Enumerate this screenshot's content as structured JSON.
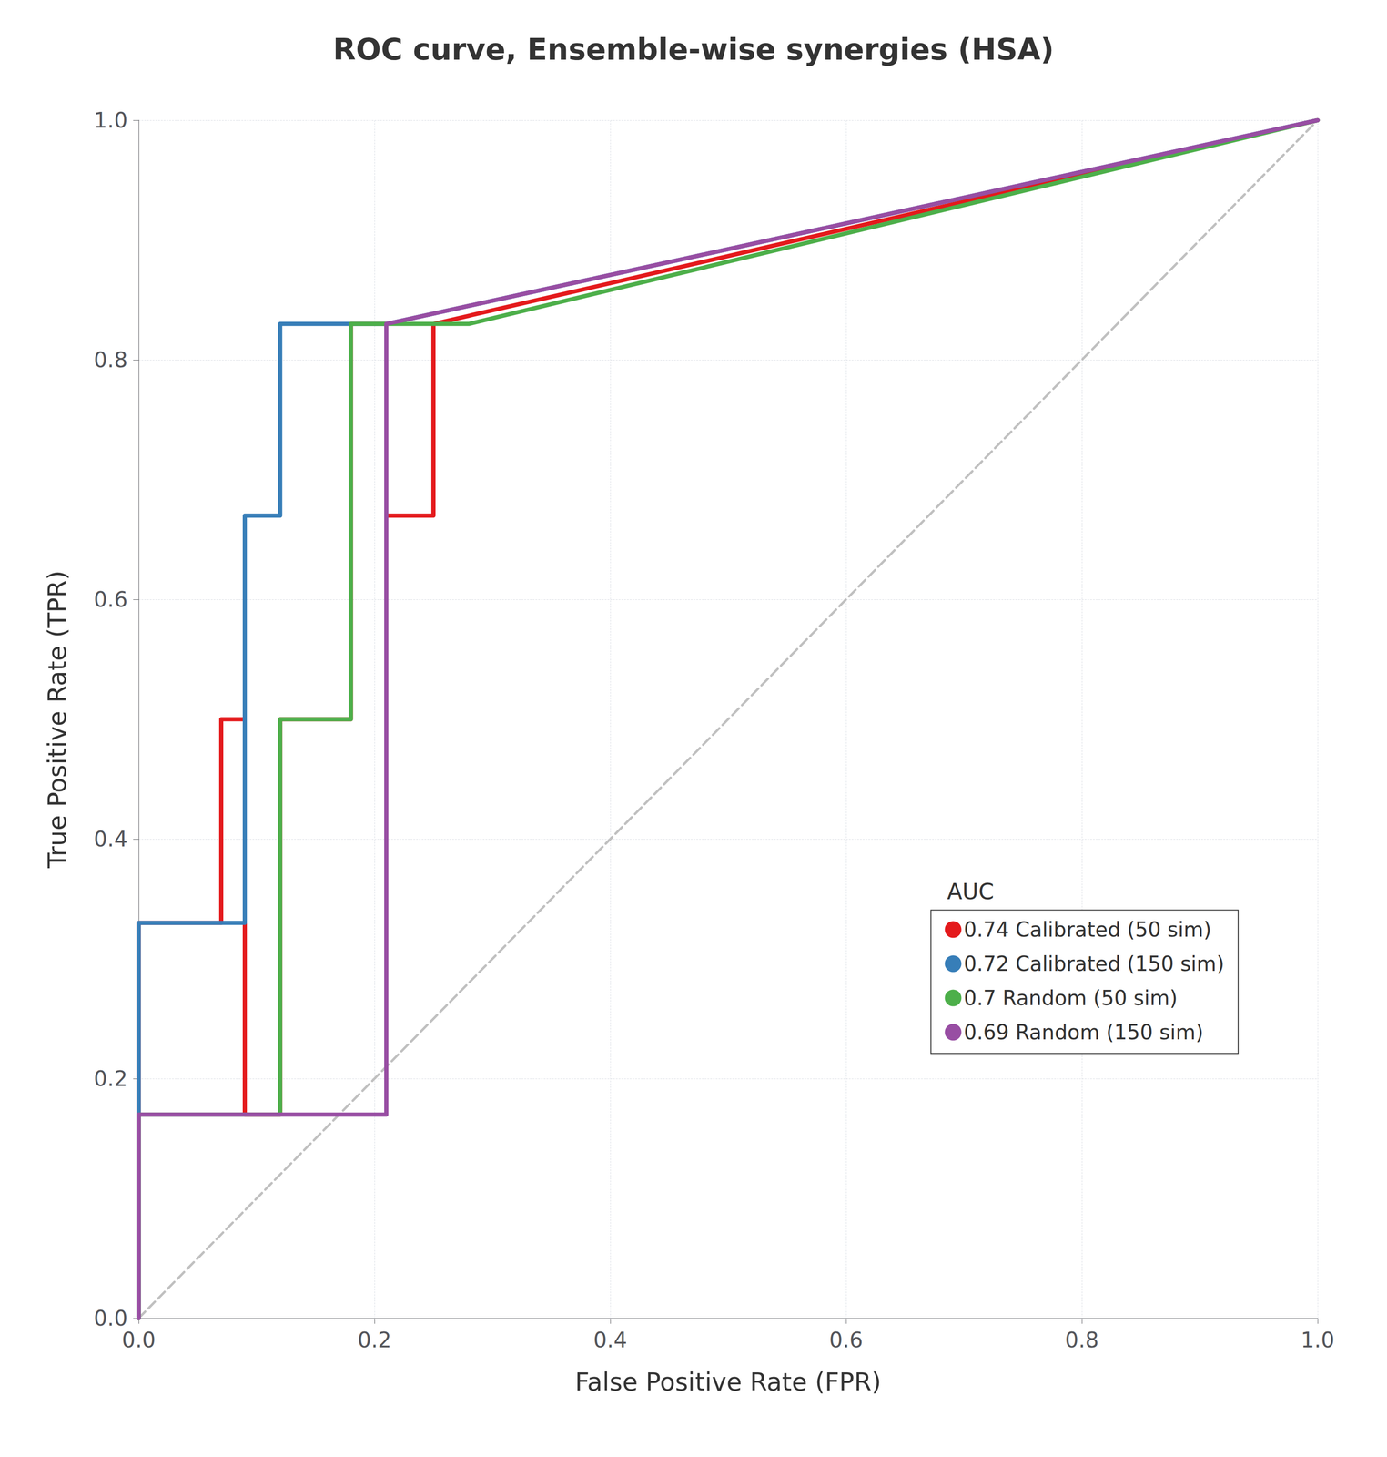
{
  "chart_data": {
    "type": "line",
    "title": "ROC curve, Ensemble-wise synergies (HSA)",
    "xlabel": "False Positive Rate (FPR)",
    "ylabel": "True Positive Rate (TPR)",
    "legend_title": "AUC",
    "legend": "lower right",
    "grid": true,
    "xlim": [
      0,
      1
    ],
    "ylim": [
      0,
      1
    ],
    "xticks": [
      {
        "value": 0,
        "label": "0.0"
      },
      0.2,
      0.4,
      0.6,
      0.8,
      {
        "value": 1,
        "label": "1.0"
      }
    ],
    "yticks": [
      {
        "value": 0,
        "label": "0.0"
      },
      0.2,
      0.4,
      0.6,
      0.8,
      {
        "value": 1,
        "label": "1.0"
      }
    ],
    "series": [
      {
        "color": "#c0c0c0",
        "line_style": "dashed",
        "x": [
          0,
          1
        ],
        "values": [
          0,
          1
        ]
      },
      {
        "name": "0.74 Calibrated (50 sim)",
        "color": "#e41a1c",
        "line_style": "solid",
        "x": [
          0.0,
          0.0,
          0.07,
          0.07,
          0.09,
          0.09,
          0.12,
          0.12,
          0.18,
          0.18,
          0.21,
          0.21,
          0.25,
          0.25,
          1.0
        ],
        "values": [
          0.0,
          0.33,
          0.33,
          0.5,
          0.5,
          0.17,
          0.17,
          0.5,
          0.5,
          0.83,
          0.83,
          0.67,
          0.67,
          0.83,
          1.0
        ]
      },
      {
        "name": "0.72 Calibrated (150 sim)",
        "color": "#377eb8",
        "line_style": "solid",
        "x": [
          0.0,
          0.0,
          0.09,
          0.09,
          0.12,
          0.12,
          0.21,
          0.21,
          1.0
        ],
        "values": [
          0.0,
          0.33,
          0.33,
          0.67,
          0.67,
          0.83,
          0.83,
          0.83,
          1.0
        ]
      },
      {
        "name": "0.7 Random (50 sim)",
        "color": "#4daf4a",
        "line_style": "solid",
        "x": [
          0.0,
          0.0,
          0.12,
          0.12,
          0.18,
          0.18,
          0.21,
          0.21,
          0.28,
          0.28,
          1.0
        ],
        "values": [
          0.0,
          0.17,
          0.17,
          0.5,
          0.5,
          0.83,
          0.83,
          0.83,
          0.83,
          0.83,
          1.0
        ]
      },
      {
        "name": "0.69 Random (150 sim)",
        "color": "#984ea3",
        "line_style": "solid",
        "x": [
          0.0,
          0.0,
          0.21,
          0.21,
          1.0
        ],
        "values": [
          0.0,
          0.17,
          0.17,
          0.83,
          1.0
        ]
      }
    ]
  }
}
